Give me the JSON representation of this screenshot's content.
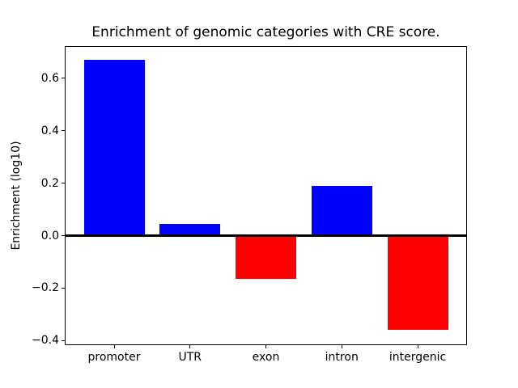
{
  "chart_data": {
    "type": "bar",
    "title": "Enrichment of genomic categories with CRE score.",
    "xlabel": "",
    "ylabel": "Enrichment (log10)",
    "categories": [
      "promoter",
      "UTR",
      "exon",
      "intron",
      "intergenic"
    ],
    "values": [
      0.67,
      0.045,
      -0.165,
      0.19,
      -0.36
    ],
    "bar_colors": [
      "#0000ff",
      "#0000ff",
      "#ff0000",
      "#0000ff",
      "#ff0000"
    ],
    "positive_color": "#0000ff",
    "negative_color": "#ff0000",
    "axis_color": "#000000",
    "background_color": "#ffffff",
    "y_ticks": [
      0.6,
      0.4,
      0.2,
      0.0,
      -0.2,
      -0.4
    ],
    "y_tick_labels": [
      "0.6",
      "0.4",
      "0.2",
      "0.0",
      "−0.2",
      "−0.4"
    ],
    "ylim": [
      -0.414,
      0.719
    ],
    "xlim": [
      -0.64,
      4.64
    ],
    "bar_width": 0.8,
    "grid": false,
    "legend": null,
    "zero_line": true
  }
}
